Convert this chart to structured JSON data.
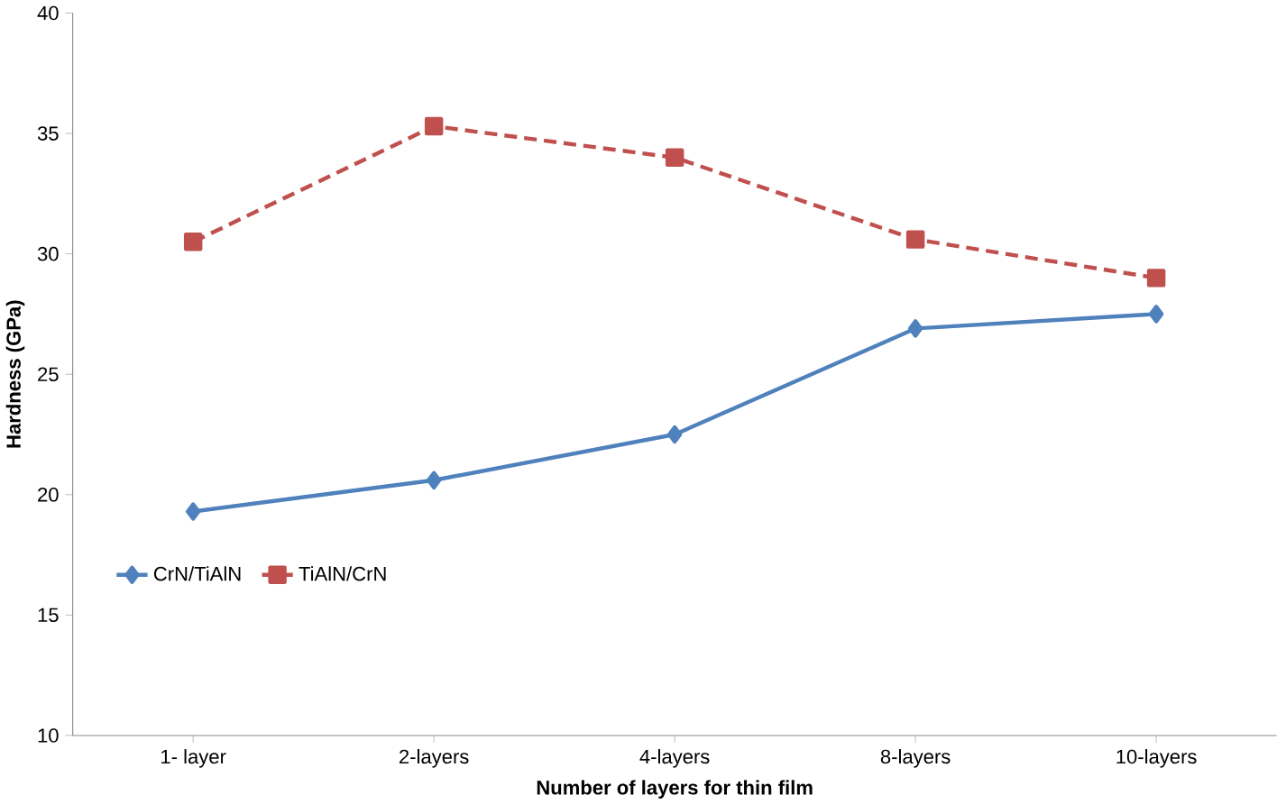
{
  "chart_data": {
    "type": "line",
    "xlabel": "Number of layers for thin film",
    "ylabel": "Hardness (GPa)",
    "categories": [
      "1- layer",
      "2-layers",
      "4-layers",
      "8-layers",
      "10-layers"
    ],
    "series": [
      {
        "name": "CrN/TiAlN",
        "color": "#4f81bd",
        "marker": "diamond",
        "line_style": "solid",
        "values": [
          19.3,
          20.6,
          22.5,
          26.9,
          27.5
        ]
      },
      {
        "name": "TiAlN/CrN",
        "color": "#c0504d",
        "marker": "square",
        "line_style": "dashed",
        "values": [
          30.5,
          35.3,
          34.0,
          30.6,
          29.0
        ]
      }
    ],
    "ylim": [
      10,
      40
    ],
    "yticks": [
      10,
      15,
      20,
      25,
      30,
      35,
      40
    ],
    "grid": false,
    "legend": "bottom left"
  }
}
